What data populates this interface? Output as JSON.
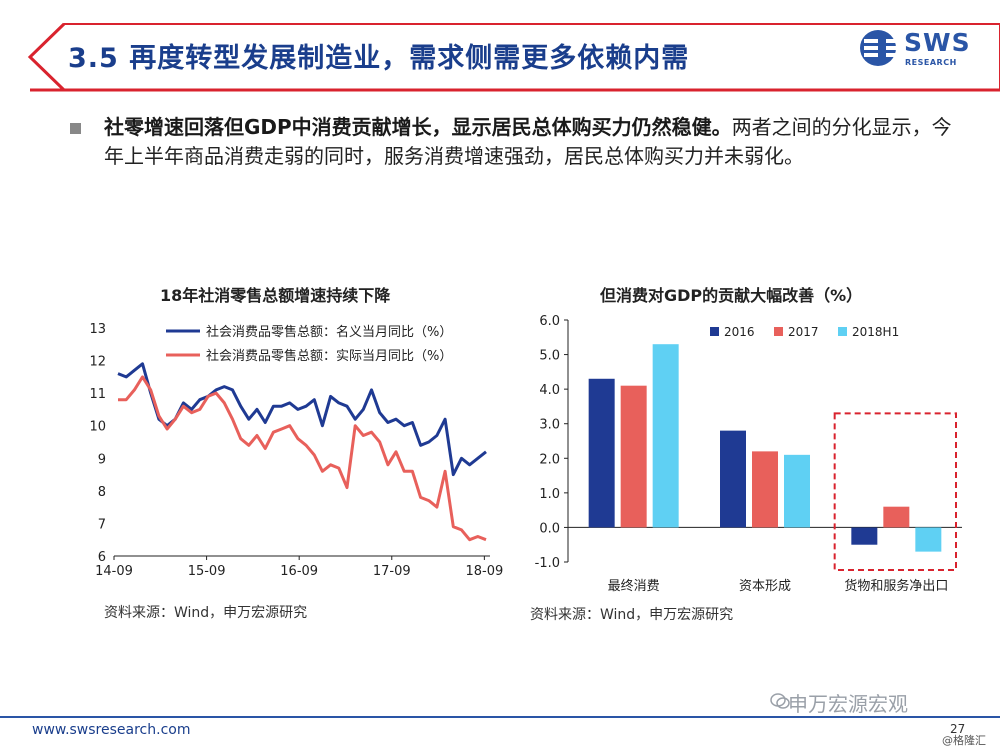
{
  "header": {
    "title": "3.5 再度转型发展制造业，需求侧需更多依赖内需",
    "logo_text": "SWS",
    "logo_sub": "RESEARCH"
  },
  "body": {
    "bold_text": "社零增速回落但GDP中消费贡献增长，显示居民总体购买力仍然稳健。",
    "rest_text": "两者之间的分化显示，今年上半年商品消费走弱的同时，服务消费增速强劲，居民总体购买力并未弱化。"
  },
  "footer": {
    "url": "www.swsresearch.com",
    "page_number": "27",
    "watermark": "申万宏源宏观",
    "credit": "@格隆汇"
  },
  "colors": {
    "navy": "#1f3a93",
    "red": "#e8605b",
    "light_blue": "#5fd0f3",
    "header_blue": "#1a3e8c"
  },
  "chart_data": [
    {
      "type": "line",
      "title": "18年社消零售总额增速持续下降",
      "source": "资料来源：Wind，申万宏源研究",
      "x_ticks": [
        "14-09",
        "15-09",
        "16-09",
        "17-09",
        "18-09"
      ],
      "ylim": [
        6,
        13
      ],
      "y_ticks": [
        "6",
        "7",
        "8",
        "9",
        "10",
        "11",
        "12",
        "13"
      ],
      "legend_placement": "top",
      "grid": false,
      "series": [
        {
          "name": "社会消费品零售总额：名义当月同比（%）",
          "color": "#1f3a93",
          "values": [
            11.6,
            11.5,
            11.7,
            11.9,
            11.0,
            10.2,
            10.0,
            10.2,
            10.7,
            10.5,
            10.8,
            10.9,
            11.1,
            11.2,
            11.1,
            10.6,
            10.2,
            10.5,
            10.1,
            10.6,
            10.6,
            10.7,
            10.5,
            10.6,
            10.8,
            10.0,
            10.9,
            10.7,
            10.6,
            10.2,
            10.5,
            11.1,
            10.4,
            10.1,
            10.2,
            10.0,
            10.1,
            9.4,
            9.5,
            9.7,
            10.2,
            8.5,
            9.0,
            8.8,
            9.0,
            9.2
          ]
        },
        {
          "name": "社会消费品零售总额：实际当月同比（%）",
          "color": "#e8605b",
          "values": [
            10.8,
            10.8,
            11.1,
            11.5,
            11.1,
            10.3,
            9.9,
            10.2,
            10.6,
            10.4,
            10.5,
            10.9,
            11.0,
            10.7,
            10.2,
            9.6,
            9.4,
            9.7,
            9.3,
            9.8,
            9.9,
            10.0,
            9.6,
            9.4,
            9.1,
            8.6,
            8.8,
            8.7,
            8.1,
            10.0,
            9.7,
            9.8,
            9.5,
            8.8,
            9.2,
            8.6,
            8.6,
            7.8,
            7.7,
            7.5,
            8.6,
            6.9,
            6.8,
            6.5,
            6.6,
            6.5
          ]
        }
      ]
    },
    {
      "type": "bar",
      "title": "但消费对GDP的贡献大幅改善（%）",
      "source": "资料来源：Wind，申万宏源研究",
      "categories": [
        "最终消费",
        "资本形成",
        "货物和服务净出口"
      ],
      "ylim": [
        -1.0,
        6.0
      ],
      "y_ticks": [
        "-1.0",
        "0.0",
        "1.0",
        "2.0",
        "3.0",
        "4.0",
        "5.0",
        "6.0"
      ],
      "legend_placement": "top",
      "highlight_category": "货物和服务净出口",
      "series": [
        {
          "name": "2016",
          "color": "#1f3a93",
          "values": [
            4.3,
            2.8,
            -0.5
          ]
        },
        {
          "name": "2017",
          "color": "#e8605b",
          "values": [
            4.1,
            2.2,
            0.6
          ]
        },
        {
          "name": "2018H1",
          "color": "#5fd0f3",
          "values": [
            5.3,
            2.1,
            -0.7
          ]
        }
      ]
    }
  ]
}
